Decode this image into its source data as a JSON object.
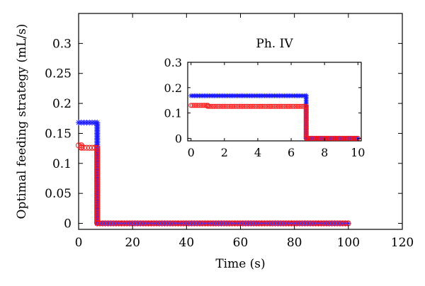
{
  "chart_data": [
    {
      "type": "scatter",
      "title": "",
      "xlabel": "Time (s)",
      "ylabel": "Optimal feeding strategy (mL/s)",
      "xlim": [
        0,
        120
      ],
      "ylim": [
        -0.01,
        0.35
      ],
      "xticks": [
        0,
        20,
        40,
        60,
        80,
        100,
        120
      ],
      "xtick_labels": [
        "0",
        "20",
        "40",
        "60",
        "80",
        "100",
        "120"
      ],
      "yticks": [
        0,
        0.05,
        0.1,
        0.15,
        0.2,
        0.25,
        0.3
      ],
      "ytick_labels": [
        "0",
        "0.05",
        "0.1",
        "0.15",
        "0.2",
        "0.25",
        "0.3"
      ],
      "grid": false,
      "series": [
        {
          "color": "#1a1aff",
          "marker": "asterisk",
          "segments": [
            {
              "x_start": 0,
              "x_end": 6.9,
              "y": 0.168
            },
            {
              "x_start": 6.9,
              "x_end": 100,
              "y": 0
            }
          ]
        },
        {
          "color": "#ff1a1a",
          "marker": "circle",
          "segments": [
            {
              "x_start": 0,
              "x_end": 1,
              "y": 0.13
            },
            {
              "x_start": 1,
              "x_end": 6.9,
              "y": 0.126
            },
            {
              "x_start": 6.9,
              "x_end": 100,
              "y": 0
            }
          ]
        }
      ]
    },
    {
      "type": "scatter",
      "title": "Ph. IV",
      "xlim": [
        -0.2,
        10.2
      ],
      "ylim": [
        -0.01,
        0.3
      ],
      "xticks": [
        0,
        2,
        4,
        6,
        8,
        10
      ],
      "xtick_labels": [
        "0",
        "2",
        "4",
        "6",
        "8",
        "10"
      ],
      "yticks": [
        0,
        0.1,
        0.2,
        0.3
      ],
      "ytick_labels": [
        "0",
        "0.1",
        "0.2",
        "0.3"
      ],
      "grid": false,
      "series": [
        {
          "color": "#1a1aff",
          "marker": "asterisk",
          "segments": [
            {
              "x_start": 0,
              "x_end": 6.9,
              "y": 0.168
            },
            {
              "x_start": 6.9,
              "x_end": 10,
              "y": 0
            }
          ]
        },
        {
          "color": "#ff1a1a",
          "marker": "circle",
          "segments": [
            {
              "x_start": 0,
              "x_end": 1,
              "y": 0.13
            },
            {
              "x_start": 1,
              "x_end": 6.9,
              "y": 0.126
            },
            {
              "x_start": 6.9,
              "x_end": 10,
              "y": 0
            }
          ]
        }
      ]
    }
  ]
}
